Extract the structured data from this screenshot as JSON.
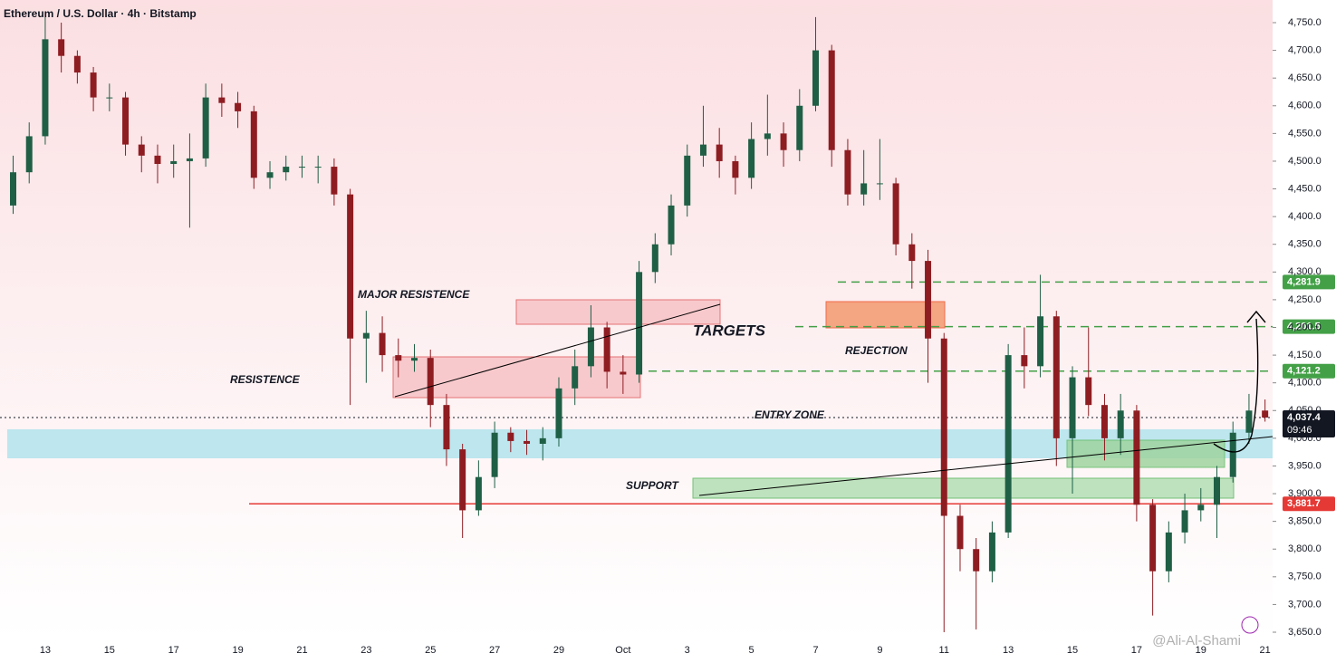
{
  "chart_data": {
    "type": "candlestick",
    "title": "Ethereum / U.S. Dollar · 4h · Bitstamp",
    "watermark": "@Ali-Al-Shami",
    "up_color": "#1f5f46",
    "down_color": "#8e1d22",
    "categories": [
      null,
      null,
      "13",
      null,
      null,
      null,
      "15",
      null,
      null,
      null,
      "17",
      null,
      null,
      null,
      "19",
      null,
      null,
      null,
      "21",
      null,
      null,
      null,
      "23",
      null,
      null,
      null,
      "25",
      null,
      null,
      null,
      "27",
      null,
      null,
      null,
      "29",
      null,
      null,
      null,
      "Oct",
      null,
      null,
      null,
      "3",
      null,
      null,
      null,
      "5",
      null,
      null,
      null,
      "7",
      null,
      null,
      null,
      "9",
      null,
      null,
      null,
      "11",
      null,
      null,
      null,
      "13",
      null,
      null,
      null,
      "15",
      null,
      null,
      null,
      "17",
      null,
      null,
      null,
      "19",
      null,
      null,
      null,
      "21"
    ],
    "open": [
      4420,
      4480,
      4545,
      4720,
      4690,
      4660,
      4615,
      4615,
      4530,
      4510,
      4495,
      4500,
      4505,
      4615,
      4605,
      4590,
      4470,
      4480,
      4490,
      4490,
      4490,
      4440,
      4180,
      4190,
      4150,
      4140,
      4145,
      4060,
      3980,
      3870,
      3930,
      4010,
      3995,
      3990,
      4000,
      4090,
      4130,
      4200,
      4120,
      4115,
      4300,
      4350,
      4420,
      4510,
      4530,
      4500,
      4470,
      4540,
      4550,
      4520,
      4600,
      4700,
      4520,
      4440,
      4460,
      4460,
      4350,
      4320,
      4180,
      3860,
      3800,
      3760,
      3830,
      4150,
      4130,
      4220,
      4000,
      4110,
      4060,
      4000,
      4050,
      3880,
      3760,
      3830,
      3870,
      3880,
      3930,
      4010,
      4050
    ],
    "high": [
      4510,
      4570,
      4760,
      4750,
      4700,
      4670,
      4640,
      4625,
      4545,
      4530,
      4530,
      4550,
      4640,
      4640,
      4625,
      4600,
      4500,
      4510,
      4510,
      4510,
      4505,
      4450,
      4230,
      4220,
      4180,
      4170,
      4160,
      4080,
      3990,
      3960,
      4030,
      4020,
      4015,
      4020,
      4110,
      4160,
      4240,
      4210,
      4150,
      4320,
      4370,
      4440,
      4530,
      4600,
      4560,
      4510,
      4570,
      4620,
      4570,
      4630,
      4760,
      4710,
      4540,
      4520,
      4540,
      4470,
      4370,
      4340,
      4190,
      3880,
      3820,
      3850,
      4170,
      4200,
      4295,
      4230,
      4130,
      4200,
      4080,
      4080,
      4060,
      3890,
      3850,
      3900,
      3910,
      3950,
      4030,
      4080,
      4070
    ],
    "low": [
      4405,
      4460,
      4530,
      4660,
      4640,
      4590,
      4590,
      4510,
      4480,
      4460,
      4470,
      4380,
      4490,
      4580,
      4560,
      4450,
      4450,
      4465,
      4470,
      4460,
      4420,
      4060,
      4100,
      4120,
      4110,
      4120,
      4020,
      3950,
      3820,
      3860,
      3910,
      3975,
      3970,
      3960,
      3985,
      4060,
      4110,
      4090,
      4080,
      4100,
      4280,
      4330,
      4400,
      4490,
      4470,
      4440,
      4450,
      4510,
      4490,
      4500,
      4590,
      4490,
      4420,
      4420,
      4430,
      4330,
      4270,
      4100,
      3650,
      3760,
      3655,
      3740,
      3820,
      4090,
      4110,
      3950,
      3900,
      4040,
      3960,
      3970,
      3850,
      3680,
      3740,
      3810,
      3850,
      3820,
      3920,
      3990,
      4030
    ],
    "close": [
      4480,
      4545,
      4720,
      4690,
      4660,
      4615,
      4615,
      4530,
      4510,
      4495,
      4500,
      4505,
      4615,
      4605,
      4590,
      4470,
      4480,
      4490,
      4490,
      4490,
      4440,
      4180,
      4190,
      4150,
      4140,
      4145,
      4060,
      3980,
      3870,
      3930,
      4010,
      3995,
      3990,
      4000,
      4090,
      4130,
      4200,
      4120,
      4115,
      4300,
      4350,
      4420,
      4510,
      4530,
      4500,
      4470,
      4540,
      4550,
      4520,
      4600,
      4700,
      4520,
      4440,
      4460,
      4460,
      4350,
      4320,
      4180,
      3860,
      3800,
      3760,
      3830,
      4150,
      4130,
      4220,
      4000,
      4110,
      4060,
      4000,
      4050,
      3880,
      3760,
      3830,
      3870,
      3880,
      3930,
      4010,
      4050,
      4037.4
    ],
    "ylim": [
      3650,
      4750
    ],
    "yticks": [
      {
        "value": 3650,
        "label": "3,650.0"
      },
      {
        "value": 3700,
        "label": "3,700.0"
      },
      {
        "value": 3750,
        "label": "3,750.0"
      },
      {
        "value": 3800,
        "label": "3,800.0"
      },
      {
        "value": 3850,
        "label": "3,850.0"
      },
      {
        "value": 3900,
        "label": "3,900.0"
      },
      {
        "value": 3950,
        "label": "3,950.0"
      },
      {
        "value": 4000,
        "label": "4,000.0"
      },
      {
        "value": 4050,
        "label": "4,050.0"
      },
      {
        "value": 4100,
        "label": "4,100.0"
      },
      {
        "value": 4150,
        "label": "4,150.0"
      },
      {
        "value": 4200,
        "label": "4,200.0"
      },
      {
        "value": 4250,
        "label": "4,250.0"
      },
      {
        "value": 4300,
        "label": "4,300.0"
      },
      {
        "value": 4350,
        "label": "4,350.0"
      },
      {
        "value": 4400,
        "label": "4,400.0"
      },
      {
        "value": 4450,
        "label": "4,450.0"
      },
      {
        "value": 4500,
        "label": "4,500.0"
      },
      {
        "value": 4550,
        "label": "4,550.0"
      },
      {
        "value": 4600,
        "label": "4,600.0"
      },
      {
        "value": 4650,
        "label": "4,650.0"
      },
      {
        "value": 4700,
        "label": "4,700.0"
      },
      {
        "value": 4750,
        "label": "4,750.0"
      }
    ],
    "levels": [
      {
        "value": 4281.9,
        "label": "4,281.9",
        "color": "#43a047",
        "style": "dashed"
      },
      {
        "value": 4201.5,
        "label": "4,201.5",
        "color": "#43a047",
        "style": "dashed"
      },
      {
        "value": 4121.2,
        "label": "4,121.2",
        "color": "#43a047",
        "style": "dashed"
      },
      {
        "value": 4037.4,
        "label": "4,037.4",
        "color": "#131722",
        "style": "dotted",
        "countdown": "09:46"
      },
      {
        "value": 3881.7,
        "label": "3,881.7",
        "color": "#e53935",
        "style": "solid"
      }
    ],
    "annotations": [
      "MAJOR RESISTENCE",
      "RESISTENCE",
      "TARGETS",
      "REJECTION",
      "ENTRY ZONE",
      "SUPPORT"
    ]
  }
}
